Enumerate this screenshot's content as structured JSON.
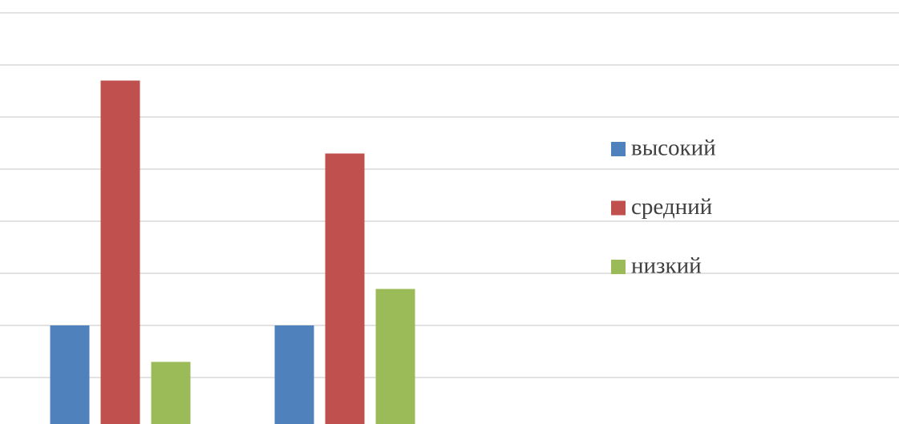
{
  "chart_data": {
    "type": "bar",
    "categories": [
      null,
      null
    ],
    "series": [
      {
        "name": "высокий",
        "color": "#4f81bd",
        "values": [
          2,
          2
        ]
      },
      {
        "name": "средний",
        "color": "#c0504d",
        "values": [
          6.7,
          5.3
        ]
      },
      {
        "name": "низкий",
        "color": "#9bbb59",
        "values": [
          1.3,
          2.7
        ]
      }
    ],
    "ylim": [
      0,
      8
    ],
    "yticks": [
      0,
      1,
      2,
      3,
      4,
      5,
      6,
      7,
      8
    ],
    "grid": true,
    "legend": "right"
  }
}
